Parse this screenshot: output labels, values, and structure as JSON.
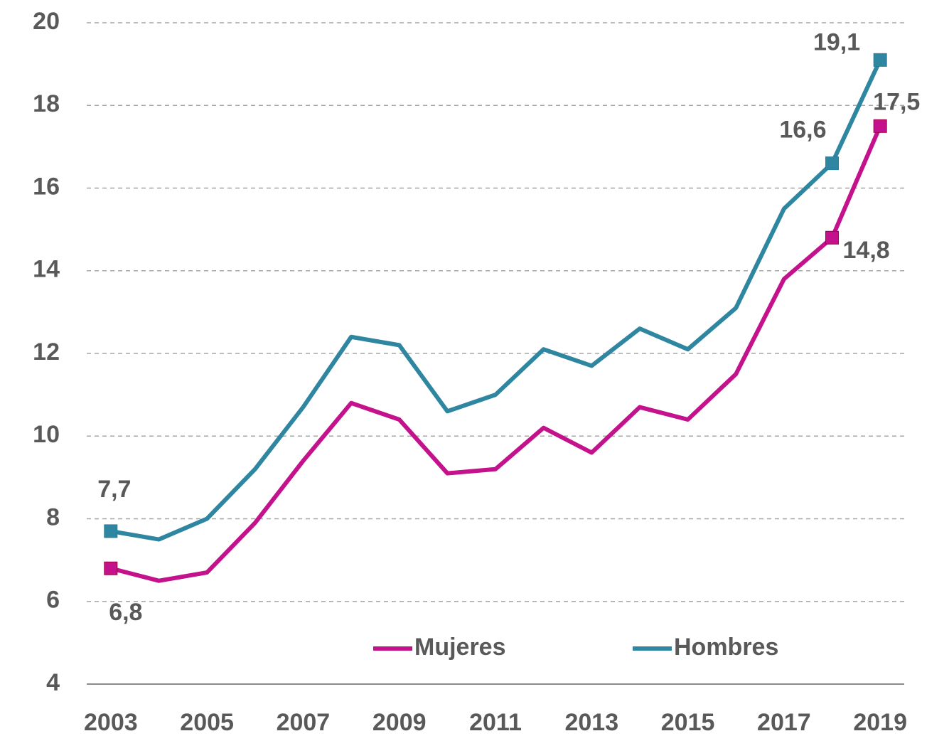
{
  "chart_data": {
    "type": "line",
    "x": [
      2003,
      2004,
      2005,
      2006,
      2007,
      2008,
      2009,
      2010,
      2011,
      2012,
      2013,
      2014,
      2015,
      2016,
      2017,
      2018,
      2019
    ],
    "series": [
      {
        "name": "Mujeres",
        "color": "#c4118c",
        "values": [
          6.8,
          6.5,
          6.7,
          7.9,
          9.4,
          10.8,
          10.4,
          9.1,
          9.2,
          10.2,
          9.6,
          10.7,
          10.4,
          11.5,
          13.8,
          14.8,
          17.5
        ],
        "value_labels": [
          "6,8",
          null,
          null,
          null,
          null,
          null,
          null,
          null,
          null,
          null,
          null,
          null,
          null,
          null,
          null,
          "14,8",
          "17,5"
        ]
      },
      {
        "name": "Hombres",
        "color": "#2e86a0",
        "values": [
          7.7,
          7.5,
          8.0,
          9.2,
          10.7,
          12.4,
          12.2,
          10.6,
          11.0,
          12.1,
          11.7,
          12.6,
          12.1,
          13.1,
          15.5,
          16.6,
          19.1
        ],
        "value_labels": [
          "7,7",
          null,
          null,
          null,
          null,
          null,
          null,
          null,
          null,
          null,
          null,
          null,
          null,
          null,
          null,
          "16,6",
          "19,1"
        ]
      }
    ],
    "xlim": [
      2002.5,
      2019.5
    ],
    "xticks": [
      2003,
      2005,
      2007,
      2009,
      2011,
      2013,
      2015,
      2017,
      2019
    ],
    "ylim": [
      4,
      20
    ],
    "yticks": [
      4,
      6,
      8,
      10,
      12,
      14,
      16,
      18,
      20
    ],
    "grid": true,
    "legend": "lower center"
  }
}
